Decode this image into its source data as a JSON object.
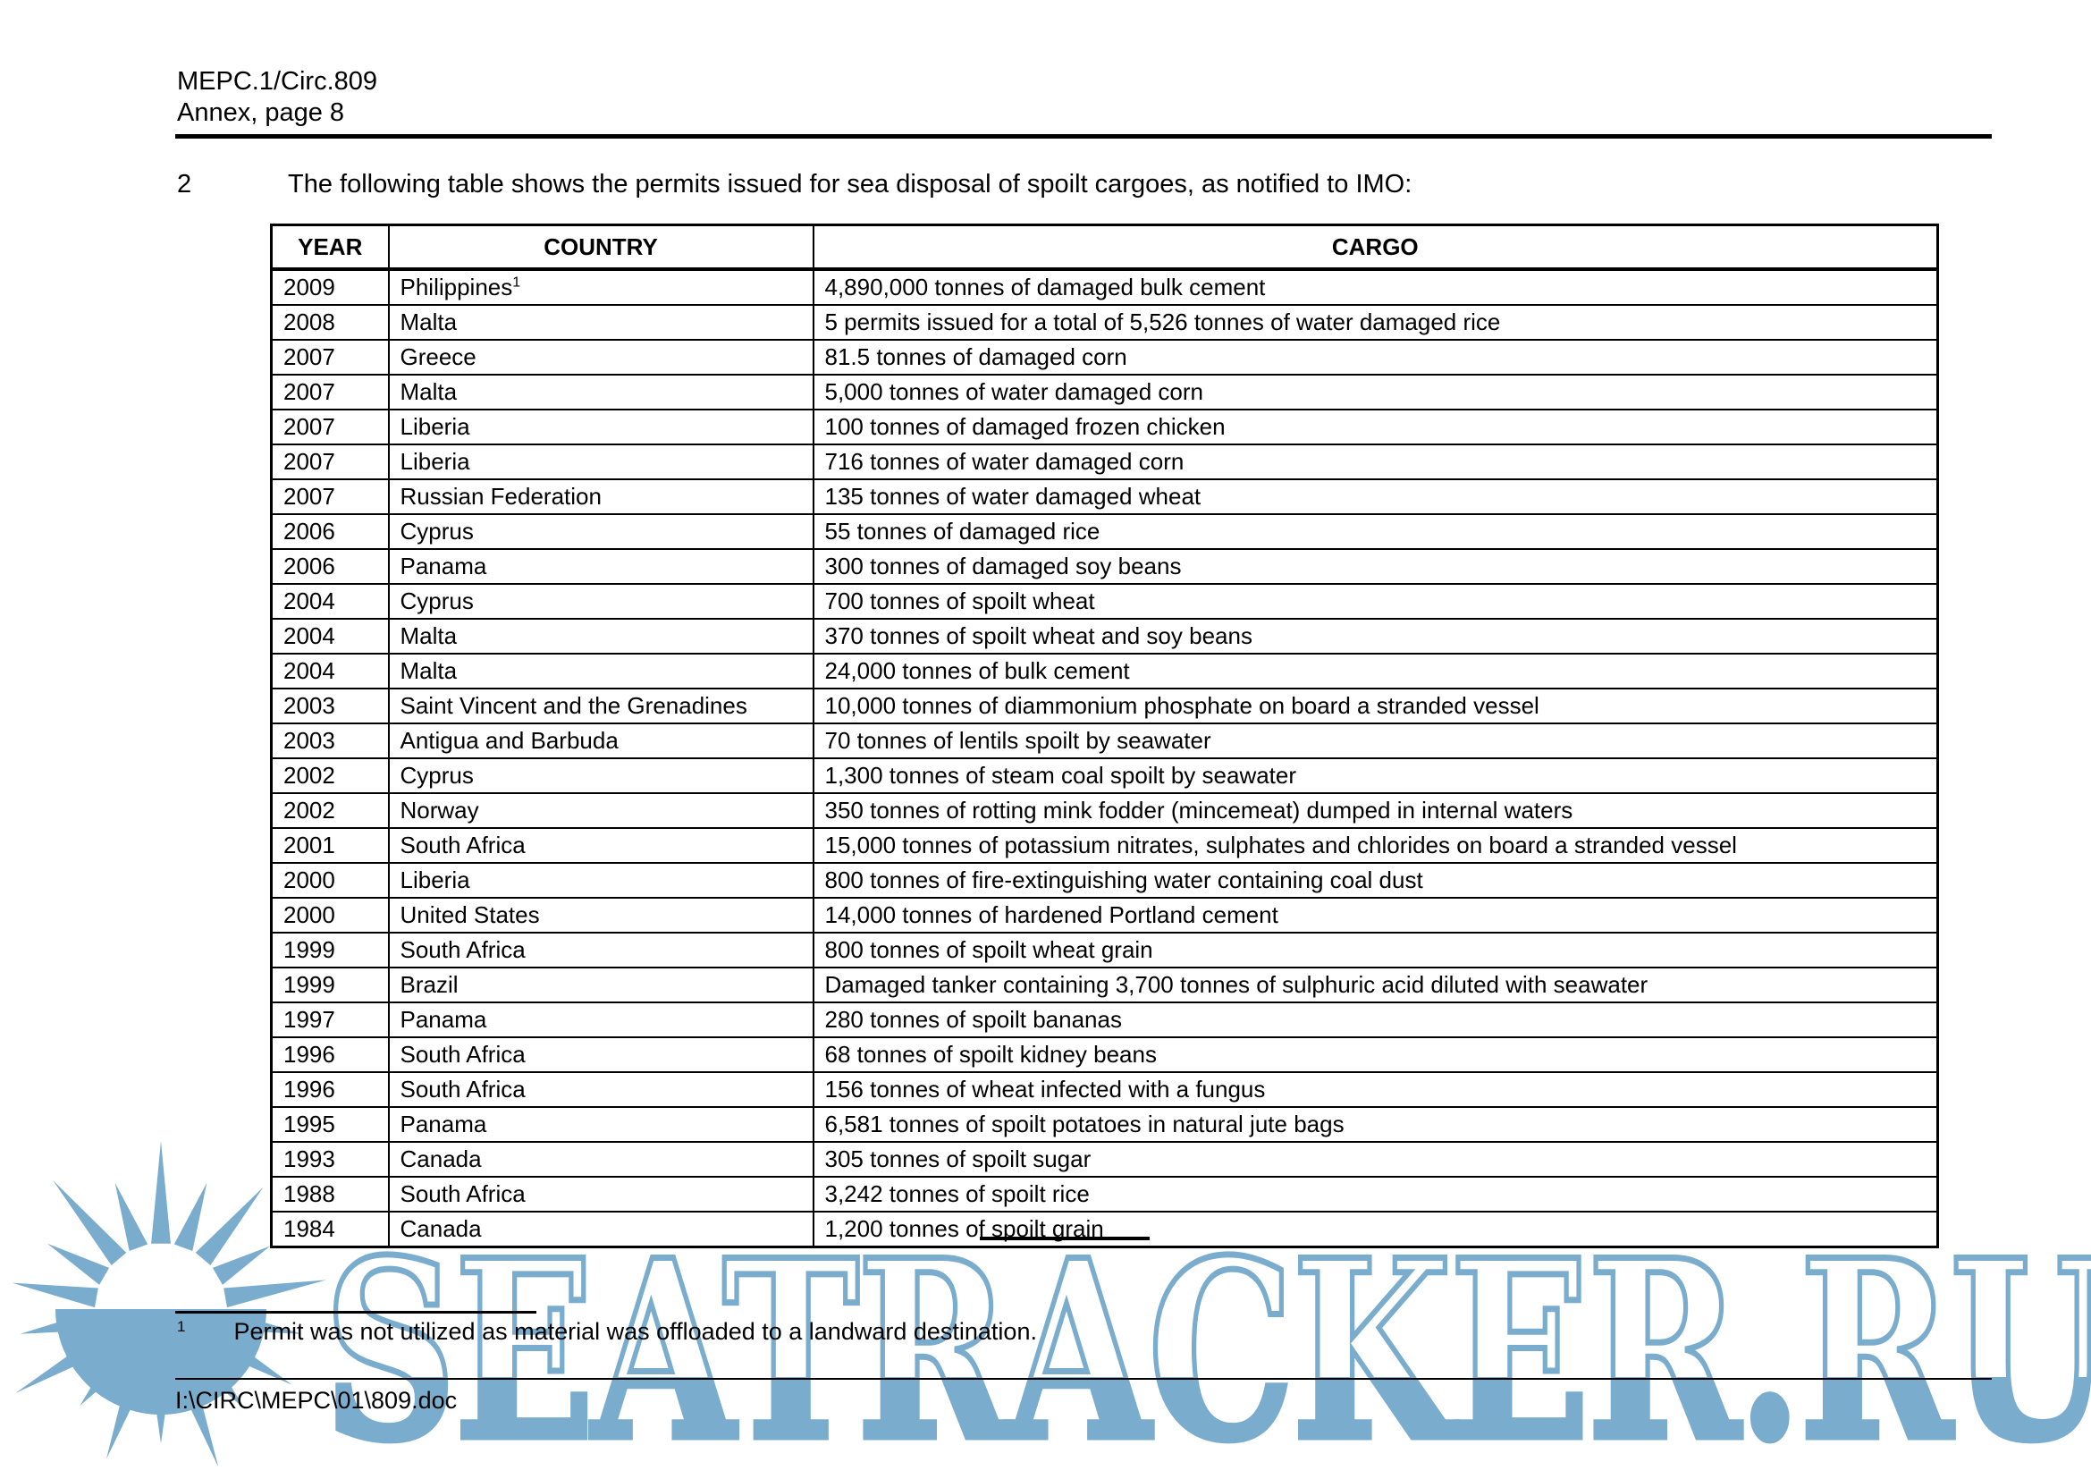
{
  "page": {
    "doc_ref": "MEPC.1/Circ.809",
    "page_ref": "Annex, page 8",
    "paragraph_number": "2",
    "paragraph_text": "The following table shows the permits issued for sea disposal of spoilt cargoes, as notified to IMO:",
    "footnote": {
      "marker": "1",
      "text": "Permit was not utilized as material was offloaded to a landward destination."
    },
    "file_path": "I:\\CIRC\\MEPC\\01\\809.doc"
  },
  "table": {
    "columns": [
      "YEAR",
      "COUNTRY",
      "CARGO"
    ],
    "rows": [
      {
        "year": "2009",
        "country": "Philippines",
        "note": "1",
        "cargo": "4,890,000 tonnes of damaged bulk cement"
      },
      {
        "year": "2008",
        "country": "Malta",
        "cargo": "5 permits issued for a total of 5,526 tonnes of water damaged rice"
      },
      {
        "year": "2007",
        "country": "Greece",
        "cargo": "81.5 tonnes of damaged corn"
      },
      {
        "year": "2007",
        "country": "Malta",
        "cargo": "5,000 tonnes of water damaged corn"
      },
      {
        "year": "2007",
        "country": "Liberia",
        "cargo": "100 tonnes of damaged frozen chicken"
      },
      {
        "year": "2007",
        "country": "Liberia",
        "cargo": "716 tonnes of water damaged corn"
      },
      {
        "year": "2007",
        "country": "Russian Federation",
        "cargo": "135 tonnes of water damaged wheat"
      },
      {
        "year": "2006",
        "country": "Cyprus",
        "cargo": "55 tonnes of damaged rice"
      },
      {
        "year": "2006",
        "country": "Panama",
        "cargo": "300 tonnes of damaged soy beans"
      },
      {
        "year": "2004",
        "country": "Cyprus",
        "cargo": "700 tonnes of spoilt wheat"
      },
      {
        "year": "2004",
        "country": "Malta",
        "cargo": "370 tonnes of spoilt wheat and soy beans"
      },
      {
        "year": "2004",
        "country": "Malta",
        "cargo": "24,000 tonnes of bulk cement"
      },
      {
        "year": "2003",
        "country": "Saint Vincent and the Grenadines",
        "cargo": "10,000 tonnes of diammonium phosphate on board a stranded vessel"
      },
      {
        "year": "2003",
        "country": "Antigua and Barbuda",
        "cargo": "70 tonnes of lentils spoilt by seawater"
      },
      {
        "year": "2002",
        "country": "Cyprus",
        "cargo": "1,300 tonnes of steam coal spoilt by seawater"
      },
      {
        "year": "2002",
        "country": "Norway",
        "cargo": "350 tonnes of rotting mink fodder (mincemeat) dumped in internal waters"
      },
      {
        "year": "2001",
        "country": "South Africa",
        "cargo": "15,000 tonnes of potassium nitrates, sulphates and chlorides on board a stranded vessel"
      },
      {
        "year": "2000",
        "country": "Liberia",
        "cargo": "800 tonnes of fire-extinguishing water containing coal dust"
      },
      {
        "year": "2000",
        "country": "United States",
        "cargo": "14,000 tonnes of hardened Portland cement"
      },
      {
        "year": "1999",
        "country": "South Africa",
        "cargo": "800 tonnes of spoilt wheat grain"
      },
      {
        "year": "1999",
        "country": "Brazil",
        "cargo": "Damaged tanker containing 3,700 tonnes of sulphuric acid diluted with seawater"
      },
      {
        "year": "1997",
        "country": "Panama",
        "cargo": "280 tonnes of spoilt bananas"
      },
      {
        "year": "1996",
        "country": "South Africa",
        "cargo": "68 tonnes of spoilt kidney beans"
      },
      {
        "year": "1996",
        "country": "South Africa",
        "cargo": "156 tonnes of wheat infected with a fungus"
      },
      {
        "year": "1995",
        "country": "Panama",
        "cargo": "6,581 tonnes of spoilt potatoes in natural jute bags"
      },
      {
        "year": "1993",
        "country": "Canada",
        "cargo": "305 tonnes of spoilt sugar"
      },
      {
        "year": "1988",
        "country": "South Africa",
        "cargo": "3,242 tonnes of spoilt rice"
      },
      {
        "year": "1984",
        "country": "Canada",
        "cargo": "1,200 tonnes of spoilt grain"
      }
    ]
  },
  "watermark": {
    "text": "SEATRACKER.RU",
    "color": "#73a9cb",
    "logo": "sun-over-sea-icon"
  }
}
